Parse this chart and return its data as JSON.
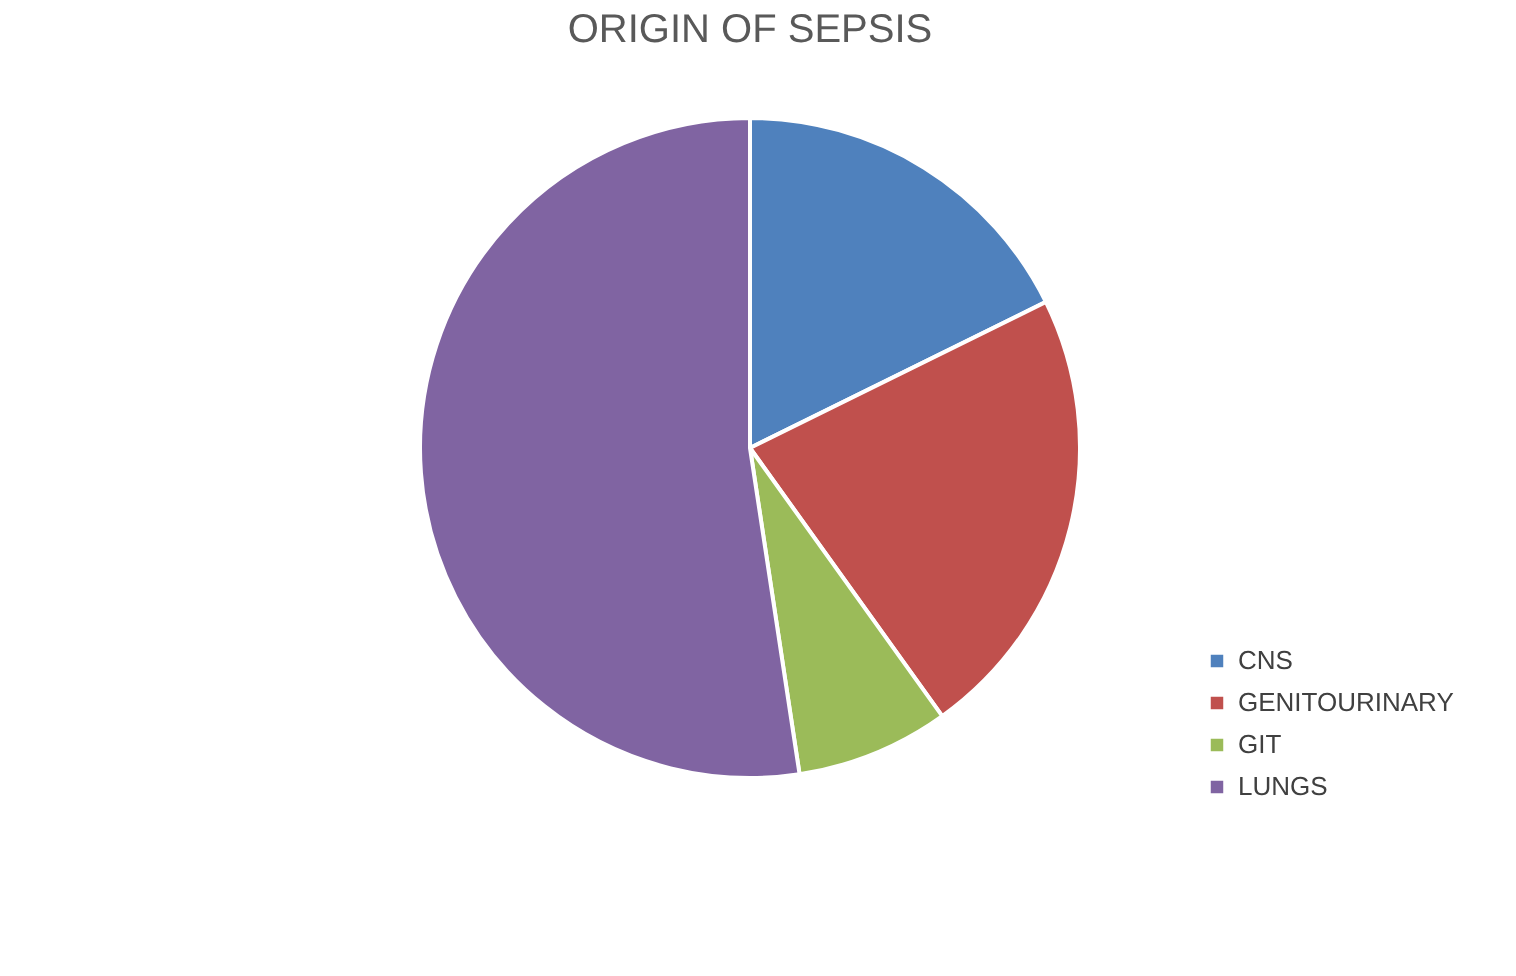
{
  "chart_data": {
    "type": "pie",
    "title": "ORIGIN OF SEPSIS",
    "categories": [
      "CNS",
      "GENITOURINARY",
      "GIT",
      "LUNGS"
    ],
    "values": [
      17.7,
      22.4,
      7.5,
      52.4
    ],
    "colors": [
      "#4f81bd",
      "#c0504d",
      "#9bbb59",
      "#8064a2"
    ],
    "legend": "bottom right"
  }
}
